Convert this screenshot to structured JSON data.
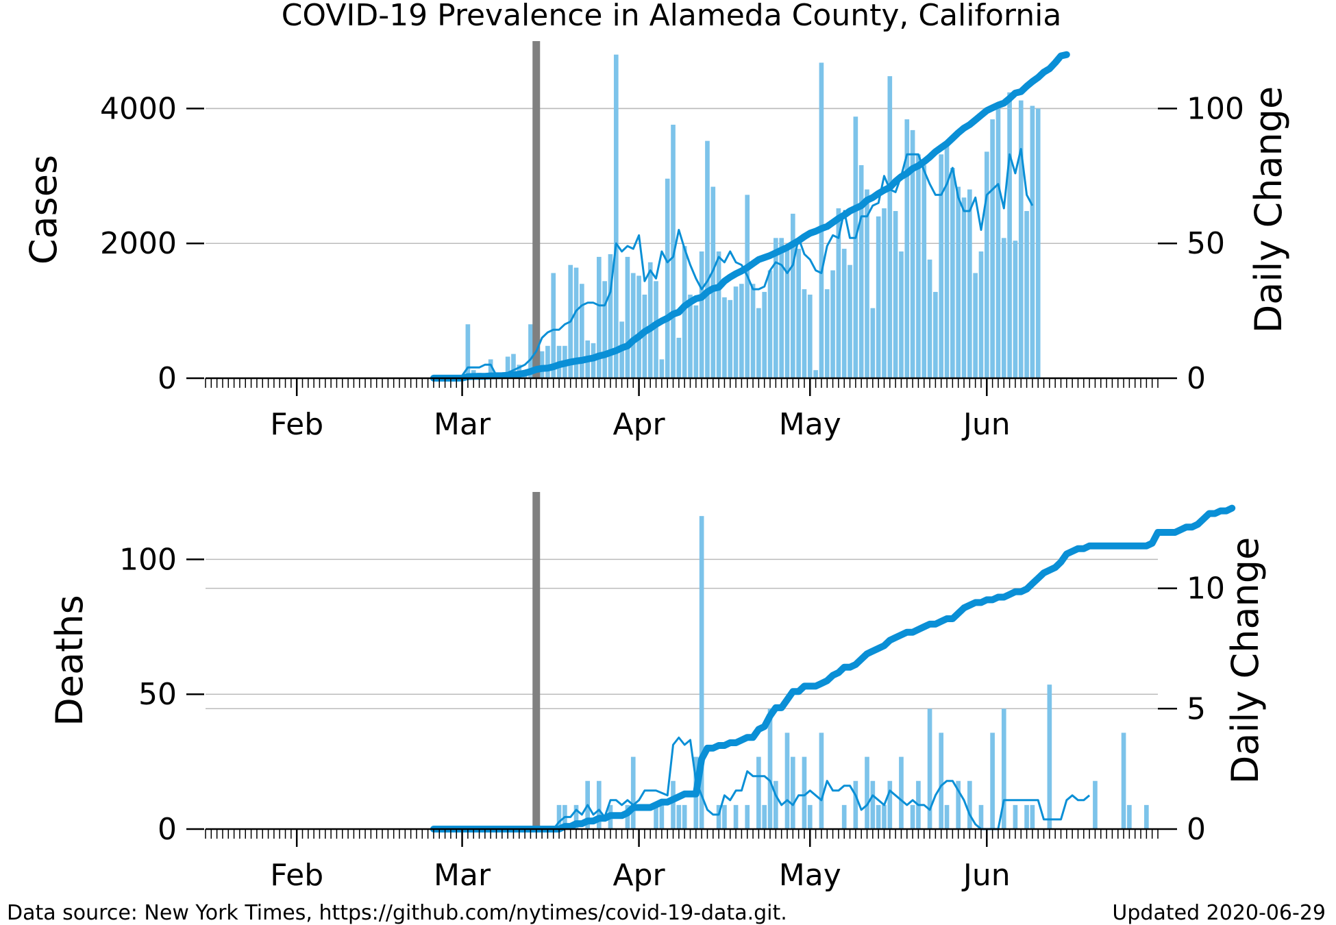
{
  "figure": {
    "title": "COVID-19 Prevalence in Alameda County, California",
    "source_note": "Data source: New York Times, https://github.com/nytimes/covid-19-data.git.",
    "updated_note": "Updated 2020-06-29",
    "colors": {
      "series": "#0a8fd6",
      "bars": "#7cc3ea",
      "lockdown_marker": "#808080",
      "grid": "#bbbbbb",
      "axis": "#000000"
    }
  },
  "chart_data": [
    {
      "type": "bar",
      "name": "cases",
      "ylabel": "Cases",
      "y2label": "Daily Change",
      "ylim": [
        0,
        5000
      ],
      "y2lim": [
        0,
        125
      ],
      "yticks": [
        0,
        2000,
        4000
      ],
      "ytick_labels": [
        "0",
        "2000",
        "4000"
      ],
      "y2ticks": [
        0,
        50,
        100
      ],
      "y2tick_labels": [
        "0",
        "50",
        "100"
      ],
      "x_range": [
        "2020-01-16",
        "2020-07-01"
      ],
      "xtick_dates": [
        "2020-02-01",
        "2020-03-01",
        "2020-04-01",
        "2020-05-01",
        "2020-06-01"
      ],
      "xtick_labels": [
        "Feb",
        "Mar",
        "Apr",
        "May",
        "Jun"
      ],
      "marker_date": "2020-03-14",
      "grid": true,
      "dates_start": "2020-02-25",
      "cumulative": [
        1,
        1,
        1,
        1,
        1,
        2,
        23,
        26,
        28,
        28,
        35,
        37,
        39,
        43,
        50,
        60,
        75,
        100,
        130,
        145,
        150,
        170,
        200,
        220,
        240,
        255,
        265,
        285,
        300,
        330,
        350,
        380,
        410,
        450,
        480,
        560,
        620,
        690,
        740,
        800,
        850,
        890,
        950,
        980,
        1070,
        1130,
        1180,
        1200,
        1280,
        1330,
        1350,
        1440,
        1500,
        1550,
        1590,
        1640,
        1700,
        1760,
        1790,
        1820,
        1860,
        1900,
        1940,
        1990,
        2040,
        2100,
        2150,
        2180,
        2220,
        2250,
        2310,
        2370,
        2420,
        2480,
        2520,
        2560,
        2640,
        2680,
        2740,
        2790,
        2830,
        2920,
        2990,
        3040,
        3110,
        3150,
        3210,
        3280,
        3360,
        3420,
        3480,
        3560,
        3640,
        3710,
        3760,
        3830,
        3900,
        3970,
        4010,
        4050,
        4080,
        4150,
        4230,
        4250,
        4330,
        4400,
        4460,
        4540,
        4590,
        4680,
        4780,
        4800
      ],
      "daily_bars": [
        0,
        0,
        0,
        0,
        0,
        0,
        20,
        3,
        2,
        0,
        7,
        2,
        2,
        8,
        9,
        5,
        3,
        20,
        30,
        10,
        12,
        39,
        12,
        12,
        42,
        41,
        35,
        14,
        13,
        45,
        36,
        46,
        120,
        21,
        45,
        39,
        38,
        31,
        43,
        36,
        7,
        74,
        94,
        15,
        49,
        31,
        27,
        47,
        88,
        71,
        47,
        30,
        29,
        34,
        35,
        68,
        35,
        26,
        32,
        40,
        52,
        52,
        48,
        61,
        48,
        33,
        31,
        3,
        117,
        33,
        40,
        63,
        48,
        42,
        97,
        79,
        70,
        26,
        60,
        63,
        112,
        62,
        47,
        96,
        92,
        83,
        79,
        44,
        32,
        83,
        87,
        78,
        71,
        67,
        70,
        39,
        47,
        84,
        96,
        102,
        52,
        106,
        51,
        103,
        62,
        101,
        100
      ],
      "daily_avg": [
        0,
        0,
        0,
        0,
        0,
        1,
        4,
        4,
        4,
        5,
        5,
        1,
        1,
        2,
        3,
        4,
        5,
        7,
        10,
        15,
        17,
        18,
        18,
        20,
        21,
        25,
        27,
        28,
        28,
        27,
        27,
        32,
        50,
        47,
        49,
        48,
        53,
        36,
        40,
        37,
        47,
        43,
        45,
        55,
        48,
        42,
        37,
        33,
        36,
        40,
        45,
        43,
        47,
        43,
        42,
        38,
        33,
        33,
        34,
        40,
        43,
        42,
        39,
        42,
        52,
        46,
        44,
        40,
        39,
        49,
        53,
        52,
        62,
        52,
        52,
        60,
        60,
        64,
        65,
        75,
        70,
        69,
        75,
        83,
        83,
        83,
        77,
        72,
        68,
        68,
        72,
        78,
        67,
        62,
        62,
        67,
        55,
        68,
        70,
        72,
        63,
        83,
        76,
        85,
        68,
        64
      ],
      "daily_avg_start": "2020-02-25"
    },
    {
      "type": "bar",
      "name": "deaths",
      "ylabel": "Deaths",
      "y2label": "Daily Change",
      "ylim": [
        0,
        125
      ],
      "y2lim": [
        0,
        14
      ],
      "yticks": [
        0,
        50,
        100
      ],
      "ytick_labels": [
        "0",
        "50",
        "100"
      ],
      "y2ticks": [
        0,
        5,
        10
      ],
      "y2tick_labels": [
        "0",
        "5",
        "10"
      ],
      "x_range": [
        "2020-01-16",
        "2020-07-01"
      ],
      "xtick_dates": [
        "2020-02-01",
        "2020-03-01",
        "2020-04-01",
        "2020-05-01",
        "2020-06-01"
      ],
      "xtick_labels": [
        "Feb",
        "Mar",
        "Apr",
        "May",
        "Jun"
      ],
      "marker_date": "2020-03-14",
      "grid": true,
      "dates_start": "2020-02-25",
      "cumulative": [
        0,
        0,
        0,
        0,
        0,
        0,
        0,
        0,
        0,
        0,
        0,
        0,
        0,
        0,
        0,
        0,
        0,
        0,
        0,
        0,
        0,
        0,
        0,
        1,
        1,
        2,
        2,
        3,
        3,
        4,
        4,
        5,
        5,
        5,
        6,
        8,
        8,
        8,
        8,
        9,
        10,
        10,
        11,
        12,
        13,
        13,
        13,
        26,
        30,
        30,
        31,
        31,
        32,
        32,
        33,
        34,
        34,
        37,
        38,
        42,
        45,
        45,
        48,
        51,
        51,
        53,
        53,
        53,
        54,
        55,
        57,
        58,
        60,
        60,
        61,
        63,
        65,
        66,
        67,
        68,
        70,
        71,
        72,
        73,
        73,
        74,
        75,
        76,
        76,
        77,
        78,
        78,
        80,
        82,
        83,
        84,
        84,
        85,
        85,
        86,
        86,
        87,
        88,
        88,
        89,
        91,
        93,
        95,
        96,
        97,
        99,
        102,
        103,
        104,
        104,
        105,
        105,
        105,
        105,
        105,
        105,
        105,
        105,
        105,
        105,
        105,
        106,
        110,
        110,
        110,
        110,
        111,
        112,
        112,
        113,
        115,
        117,
        117,
        118,
        118,
        119
      ],
      "daily_bars": [
        0,
        0,
        0,
        0,
        0,
        0,
        0,
        0,
        0,
        0,
        0,
        0,
        0,
        0,
        0,
        0,
        0,
        0,
        0,
        0,
        0,
        0,
        1,
        1,
        0,
        1,
        0,
        2,
        0,
        2,
        0,
        1,
        0,
        0,
        1,
        3,
        0,
        0,
        0,
        1,
        1,
        0,
        2,
        1,
        1,
        0,
        3,
        13,
        0,
        0,
        1,
        1,
        0,
        1,
        0,
        1,
        0,
        3,
        1,
        5,
        2,
        0,
        4,
        3,
        0,
        3,
        1,
        0,
        4,
        0,
        0,
        0,
        1,
        0,
        2,
        0,
        3,
        2,
        1,
        1,
        2,
        0,
        3,
        0,
        1,
        2,
        0,
        5,
        0,
        4,
        1,
        0,
        2,
        0,
        2,
        0,
        1,
        0,
        4,
        0,
        5,
        0,
        1,
        0,
        1,
        1,
        0,
        0,
        6,
        0,
        0,
        0,
        0,
        0,
        0,
        0,
        2,
        0,
        0,
        0,
        0,
        4,
        1,
        0,
        0,
        1
      ],
      "daily_avg": [
        0,
        0,
        0,
        0,
        0,
        0,
        0,
        0,
        0,
        0,
        0,
        0,
        0,
        0,
        0,
        0,
        0,
        0,
        0,
        0,
        0,
        0,
        0.3,
        0.5,
        0.5,
        0.8,
        0.6,
        1.0,
        0.6,
        0.8,
        0.5,
        1.2,
        1.2,
        1.0,
        1.2,
        1.0,
        1.2,
        1.6,
        1.6,
        1.6,
        1.5,
        1.4,
        3.5,
        3.8,
        3.5,
        3.7,
        2.0,
        1.4,
        0.8,
        0.6,
        0.6,
        1.4,
        1.2,
        1.6,
        1.6,
        2.4,
        2.2,
        2.2,
        2.2,
        2.0,
        1.4,
        1.0,
        1.2,
        1.0,
        1.4,
        1.4,
        1.6,
        1.4,
        1.2,
        2.0,
        1.6,
        1.6,
        1.8,
        1.8,
        1.4,
        0.8,
        1.0,
        1.4,
        1.2,
        1.0,
        1.6,
        1.4,
        1.2,
        1.0,
        1.2,
        1.0,
        1.0,
        0.8,
        1.4,
        1.8,
        2.0,
        2.0,
        1.6,
        1.2,
        0.6,
        0.2,
        0.0,
        0.0,
        0.0,
        0.0,
        1.2,
        1.2,
        1.2,
        1.2,
        1.2,
        1.2,
        1.2,
        0.4,
        0.4,
        0.4,
        0.4,
        1.2,
        1.4,
        1.2,
        1.2,
        1.4
      ],
      "daily_avg_start": "2020-02-25"
    }
  ]
}
